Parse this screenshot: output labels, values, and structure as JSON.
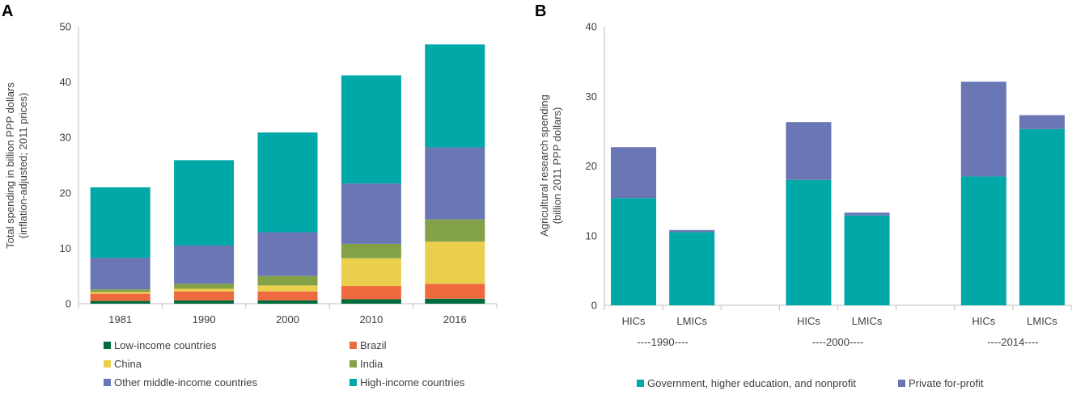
{
  "colors": {
    "low_income": "#006b3c",
    "brazil": "#ee6a3e",
    "china": "#eacf4f",
    "india": "#83a247",
    "other_middle": "#6a77b4",
    "high_income": "#00a8a8",
    "gov": "#00a8a8",
    "private": "#6a77b4",
    "axis": "#bfbfbf",
    "text": "#404040"
  },
  "chart_data": [
    {
      "type": "bar",
      "stacked": true,
      "panel": "A",
      "title": "",
      "categories": [
        "1981",
        "1990",
        "2000",
        "2010",
        "2016"
      ],
      "ylabel_line1": "Total spending in billion PPP dollars",
      "ylabel_line2": "(inflation-adjusted; 2011 prices)",
      "xlabel": "",
      "ylim": [
        0,
        50
      ],
      "yticks": [
        0,
        10,
        20,
        30,
        40,
        50
      ],
      "series": [
        {
          "name": "Low-income countries",
          "key": "low_income",
          "values": [
            0.5,
            0.6,
            0.6,
            0.8,
            0.9
          ]
        },
        {
          "name": "Brazil",
          "key": "brazil",
          "values": [
            1.3,
            1.6,
            1.6,
            2.4,
            2.7
          ]
        },
        {
          "name": "China",
          "key": "china",
          "values": [
            0.3,
            0.5,
            1.1,
            5.0,
            7.6
          ]
        },
        {
          "name": "India",
          "key": "india",
          "values": [
            0.5,
            0.9,
            1.7,
            2.6,
            4.0
          ]
        },
        {
          "name": "Other middle-income countries",
          "key": "other_middle",
          "values": [
            5.7,
            6.9,
            7.9,
            10.9,
            13.0
          ]
        },
        {
          "name": "High-income countries",
          "key": "high_income",
          "values": [
            12.7,
            15.4,
            18.0,
            19.5,
            18.6
          ]
        }
      ],
      "legend_position": "bottom"
    },
    {
      "type": "bar",
      "stacked": true,
      "panel": "B",
      "title": "",
      "categories": [
        "HICs",
        "LMICs",
        "HICs",
        "LMICs",
        "HICs",
        "LMICs"
      ],
      "groups": [
        "----1990----",
        "----2000----",
        "----2014----"
      ],
      "ylabel_line1": "Agricultural research spending",
      "ylabel_line2": "(billion 2011 PPP dollars)",
      "xlabel": "",
      "ylim": [
        0,
        40
      ],
      "yticks": [
        0,
        10,
        20,
        30,
        40
      ],
      "series": [
        {
          "name": "Government, higher education, and nonprofit",
          "key": "gov",
          "values": [
            15.4,
            10.5,
            18.0,
            12.9,
            18.5,
            25.3
          ]
        },
        {
          "name": "Private for-profit",
          "key": "private",
          "values": [
            7.3,
            0.3,
            8.3,
            0.4,
            13.6,
            2.0
          ]
        }
      ],
      "legend_position": "bottom"
    }
  ]
}
